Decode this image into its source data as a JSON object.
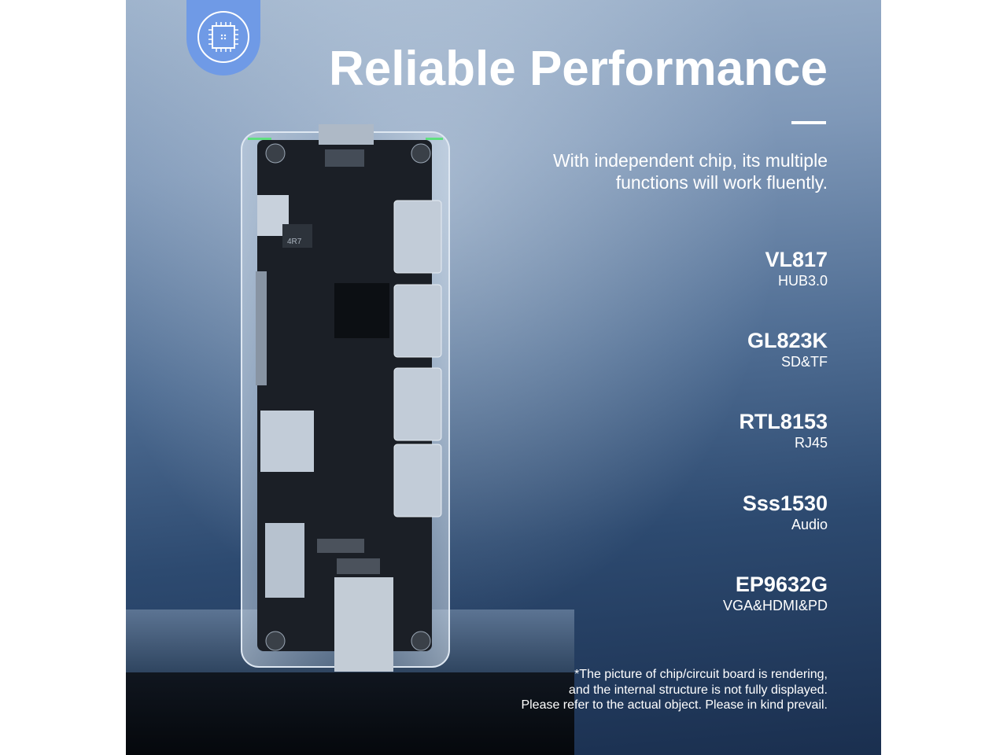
{
  "headline": "Reliable Performance",
  "subtitle_lines": [
    "With independent chip, its multiple",
    "functions will work fluently."
  ],
  "chips": [
    {
      "name": "VL817",
      "function": "HUB3.0"
    },
    {
      "name": "GL823K",
      "function": "SD&TF"
    },
    {
      "name": "RTL8153",
      "function": "RJ45"
    },
    {
      "name": "Sss1530",
      "function": "Audio"
    },
    {
      "name": "EP9632G",
      "function": "VGA&HDMI&PD"
    }
  ],
  "disclaimer_lines": [
    "*The picture of chip/circuit board is rendering,",
    "and the internal structure is not fully displayed.",
    "Please refer to the actual object. Please in kind prevail."
  ],
  "board_label": "4R7",
  "badge_icon": "chip-icon",
  "colors": {
    "badge": "#6f9ae6",
    "text": "#ffffff"
  }
}
